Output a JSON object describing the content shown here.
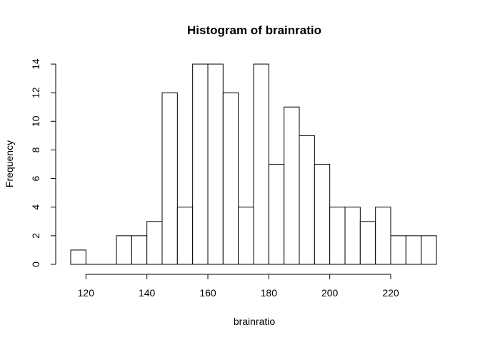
{
  "chart_data": {
    "type": "bar",
    "title": "Histogram of brainratio",
    "xlabel": "brainratio",
    "ylabel": "Frequency",
    "bin_width": 5,
    "bin_starts": [
      115,
      120,
      125,
      130,
      135,
      140,
      145,
      150,
      155,
      160,
      165,
      170,
      175,
      180,
      185,
      190,
      195,
      200,
      205,
      210,
      215,
      220,
      225,
      230
    ],
    "values": [
      1,
      0,
      0,
      2,
      2,
      3,
      12,
      4,
      14,
      14,
      12,
      4,
      14,
      7,
      11,
      9,
      7,
      4,
      4,
      3,
      4,
      2,
      2,
      2
    ],
    "xlim": [
      115,
      235
    ],
    "ylim": [
      0,
      14
    ],
    "x_ticks": [
      120,
      140,
      160,
      180,
      200,
      220
    ],
    "y_ticks": [
      0,
      2,
      4,
      6,
      8,
      10,
      12,
      14
    ],
    "grid": false,
    "bar_fill": "#ffffff",
    "bar_stroke": "#000000"
  }
}
